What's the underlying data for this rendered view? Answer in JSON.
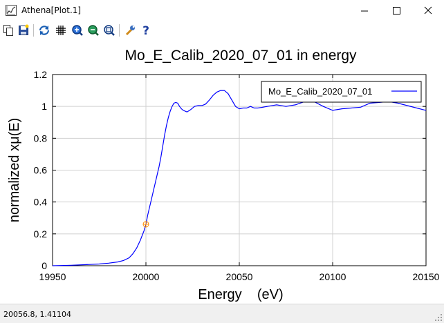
{
  "window": {
    "title": "Athena[Plot.1]",
    "colors": {
      "titlebar": "#ffffff",
      "statusbar": "#f0f0f0"
    }
  },
  "toolbar": {
    "buttons": [
      {
        "name": "copy-icon"
      },
      {
        "name": "save-icon"
      },
      {
        "name": "refresh-icon"
      },
      {
        "name": "grid-icon"
      },
      {
        "name": "zoom-in-icon"
      },
      {
        "name": "zoom-out-icon"
      },
      {
        "name": "zoom-reset-icon"
      },
      {
        "name": "settings-wrench-icon"
      },
      {
        "name": "help-icon"
      }
    ]
  },
  "status": {
    "text": "20056.8,  1.41104"
  },
  "chart_data": {
    "type": "line",
    "title": "Mo_E_Calib_2020_07_01 in energy",
    "xlabel": "Energy    (eV)",
    "ylabel": "normalized xμ(E)",
    "xlim": [
      19950,
      20150
    ],
    "ylim": [
      0,
      1.2
    ],
    "xticks": [
      "19950",
      "20000",
      "20050",
      "20100",
      "20150"
    ],
    "yticks": [
      "0",
      "0.2",
      "0.4",
      "0.6",
      "0.8",
      "1",
      "1.2"
    ],
    "grid": true,
    "legend_position": "top-right",
    "series": [
      {
        "name": "Mo_E_Calib_2020_07_01",
        "color": "#0000ff",
        "x": [
          19950,
          19960,
          19970,
          19975,
          19980,
          19985,
          19988,
          19991,
          19993,
          19995,
          19997,
          19998,
          19999,
          20000,
          20001,
          20002,
          20003,
          20004,
          20005,
          20006,
          20007,
          20008,
          20009,
          20010,
          20011,
          20012,
          20013,
          20014,
          20015,
          20016,
          20017,
          20018,
          20019,
          20020,
          20022,
          20024,
          20026,
          20028,
          20030,
          20032,
          20034,
          20036,
          20038,
          20040,
          20042,
          20044,
          20046,
          20048,
          20050,
          20052,
          20054,
          20056,
          20058,
          20060,
          20065,
          20070,
          20075,
          20080,
          20085,
          20088,
          20090,
          20095,
          20100,
          20105,
          20110,
          20115,
          20120,
          20125,
          20130,
          20135,
          20140,
          20145,
          20150
        ],
        "y": [
          0.0,
          0.003,
          0.008,
          0.011,
          0.016,
          0.024,
          0.033,
          0.05,
          0.075,
          0.11,
          0.16,
          0.19,
          0.22,
          0.26,
          0.32,
          0.37,
          0.42,
          0.47,
          0.52,
          0.57,
          0.62,
          0.68,
          0.75,
          0.82,
          0.88,
          0.93,
          0.97,
          1.0,
          1.02,
          1.025,
          1.02,
          1.0,
          0.985,
          0.975,
          0.965,
          0.98,
          1.0,
          1.005,
          1.005,
          1.015,
          1.04,
          1.07,
          1.09,
          1.1,
          1.1,
          1.08,
          1.04,
          1.0,
          0.985,
          0.99,
          0.99,
          1.0,
          0.99,
          0.99,
          1.0,
          1.01,
          1.0,
          1.01,
          1.03,
          1.035,
          1.03,
          1.0,
          0.975,
          0.985,
          0.99,
          0.995,
          1.02,
          1.025,
          1.03,
          1.02,
          1.005,
          0.99,
          0.975
        ]
      }
    ],
    "marker": {
      "x": 20000,
      "y": 0.26,
      "color": "#ff8c00"
    }
  }
}
